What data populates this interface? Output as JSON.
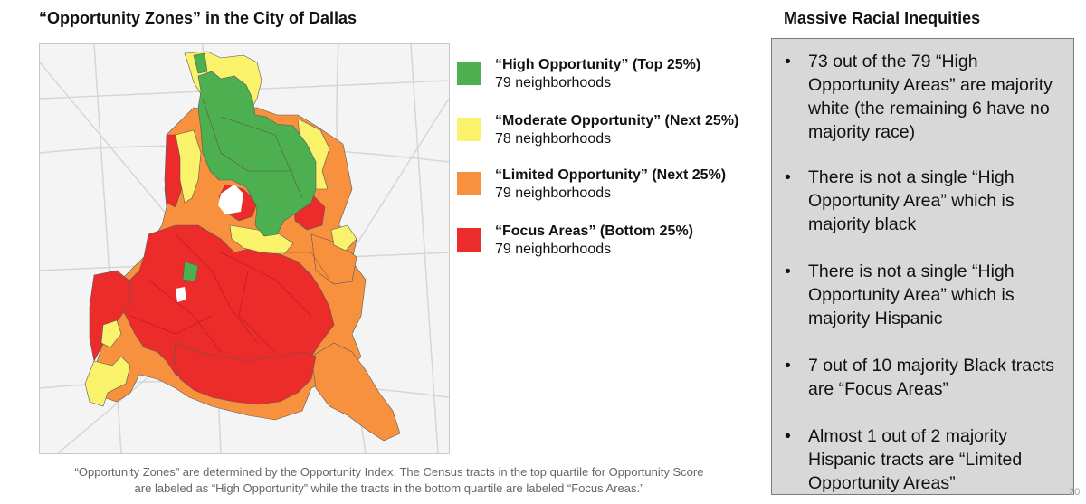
{
  "left_title": "“Opportunity Zones” in the City of Dallas",
  "right_title": "Massive Racial Inequities",
  "colors": {
    "high": "#4caf50",
    "moderate": "#fbf26b",
    "limited": "#f7913d",
    "focus": "#ec2b2b",
    "box_bg": "#d8d8d8"
  },
  "legend": [
    {
      "label": "“High Opportunity” (Top 25%)",
      "count": "79 neighborhoods",
      "color": "#4caf50"
    },
    {
      "label": "“Moderate Opportunity” (Next 25%)",
      "count": "78 neighborhoods",
      "color": "#fbf26b"
    },
    {
      "label": "“Limited Opportunity” (Next 25%)",
      "count": "79 neighborhoods",
      "color": "#f7913d"
    },
    {
      "label": "“Focus Areas” (Bottom 25%)",
      "count": "79 neighborhoods",
      "color": "#ec2b2b"
    }
  ],
  "bullets": [
    "73 out of the 79 “High Opportunity Areas” are majority white (the remaining 6 have no majority race)",
    "There is not a single “High Opportunity Area” which is majority black",
    "There is not a single “High Opportunity Area” which is majority Hispanic",
    "7 out of 10 majority Black tracts are “Focus Areas”",
    "Almost 1 out of 2 majority Hispanic tracts are “Limited Opportunity Areas”"
  ],
  "bullet_symbol": "•",
  "footnote_line1": "“Opportunity Zones” are determined by the Opportunity Index. The Census tracts in the top quartile for Opportunity Score",
  "footnote_line2": "are labeled as “High Opportunity” while the tracts in the bottom quartile are labeled “Focus Areas.”",
  "page_number": "20"
}
